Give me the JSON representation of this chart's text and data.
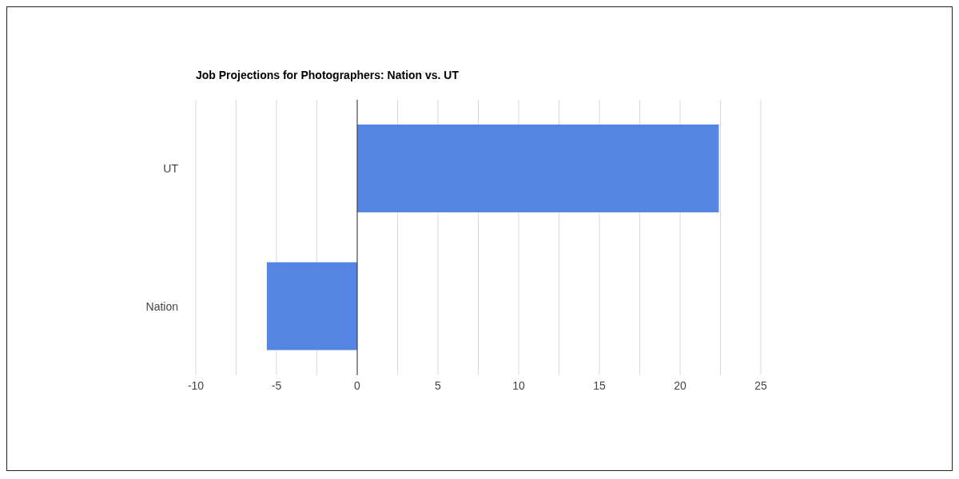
{
  "chart_data": {
    "type": "bar",
    "orientation": "horizontal",
    "title": "Job Projections for Photographers: Nation vs. UT",
    "categories": [
      "UT",
      "Nation"
    ],
    "values": [
      22.4,
      -5.6
    ],
    "color": "#5485e3",
    "xlim": [
      -10,
      25
    ],
    "xticks": [
      -10,
      {
        "value": -7.5,
        "label": null
      },
      -5,
      {
        "value": -2.5,
        "label": null
      },
      0,
      {
        "value": 2.5,
        "label": null
      },
      5,
      {
        "value": 7.5,
        "label": null
      },
      10,
      {
        "value": 12.5,
        "label": null
      },
      15,
      {
        "value": 17.5,
        "label": null
      },
      20,
      {
        "value": 22.5,
        "label": null
      },
      25
    ],
    "grid": "x",
    "ref_lines": [
      {
        "axis": "x",
        "value": 0,
        "color": "#333333"
      }
    ],
    "legend": false
  }
}
